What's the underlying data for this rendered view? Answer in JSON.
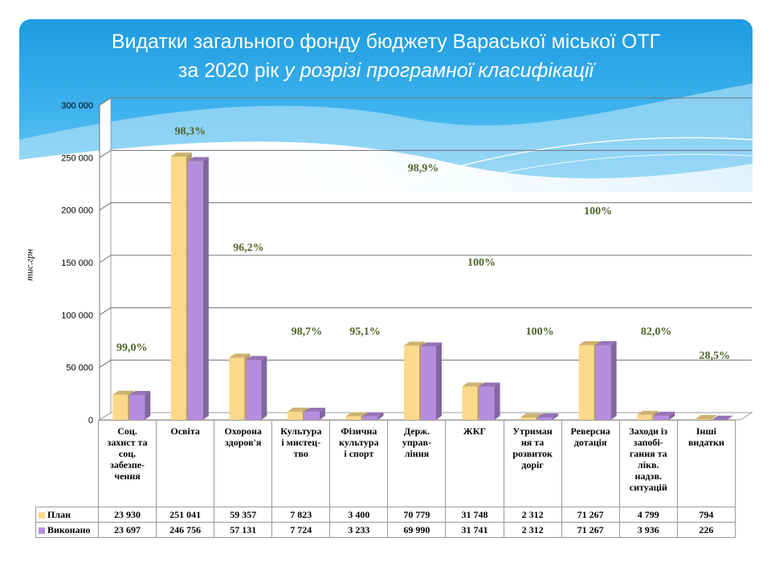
{
  "title": {
    "line1": "Видатки загального фонду бюджету Вараської міської ОТГ",
    "line2_plain": "за 2020 рік",
    "line2_italic": " у розрізі програмної класифікації"
  },
  "colors": {
    "plan": "#FAD98A",
    "done": "#B68DDE",
    "pct_label": "#4F6228",
    "banner": "#2AA6E6"
  },
  "chart_data": {
    "type": "bar",
    "ylabel": "тис.грн",
    "ylim": [
      0,
      300000
    ],
    "yticks": [
      "0",
      "50 000",
      "100 000",
      "150 000",
      "200 000",
      "250 000",
      "300 000"
    ],
    "grid": true,
    "legend": "table",
    "categories": [
      [
        "Соц.",
        "захист та",
        "соц.",
        "забезпе-",
        "чення"
      ],
      [
        "Освіта"
      ],
      [
        "Охорона",
        "здоров'я"
      ],
      [
        "Культура",
        "і мистец-",
        "тво"
      ],
      [
        "Фізична",
        "культура",
        "і спорт"
      ],
      [
        "Держ.",
        "управ-",
        "ління"
      ],
      [
        "ЖКГ"
      ],
      [
        "Утриман",
        "ня та",
        "розвиток",
        "доріг"
      ],
      [
        "Реверсна",
        "дотація"
      ],
      [
        "Заходи із",
        "запобі-",
        "гання та",
        "лікв.",
        "надзв.",
        "ситуацій"
      ],
      [
        "Інші",
        "видатки"
      ]
    ],
    "series": [
      {
        "name": "План",
        "values": [
          23930,
          251041,
          59357,
          7823,
          3400,
          70779,
          31748,
          2312,
          71267,
          4799,
          794
        ],
        "labels": [
          "23 930",
          "251 041",
          "59 357",
          "7 823",
          "3 400",
          "70 779",
          "31 748",
          "2 312",
          "71 267",
          "4 799",
          "794"
        ]
      },
      {
        "name": "Виконано",
        "values": [
          23697,
          246756,
          57131,
          7724,
          3233,
          69990,
          31741,
          2312,
          71267,
          3936,
          226
        ],
        "labels": [
          "23 697",
          "246 756",
          "57 131",
          "7 724",
          "3 233",
          "69 990",
          "31 741",
          "2 312",
          "71 267",
          "3 936",
          "226"
        ]
      }
    ],
    "percent_labels": [
      "99,0%",
      "98,3%",
      "96,2%",
      "98,7%",
      "95,1%",
      "98,9%",
      "100%",
      "100%",
      "100%",
      "82,0%",
      "28,5%"
    ],
    "percent_label_values": [
      66000,
      272000,
      161000,
      81000,
      81000,
      237000,
      147000,
      81000,
      196000,
      81000,
      58000
    ]
  }
}
